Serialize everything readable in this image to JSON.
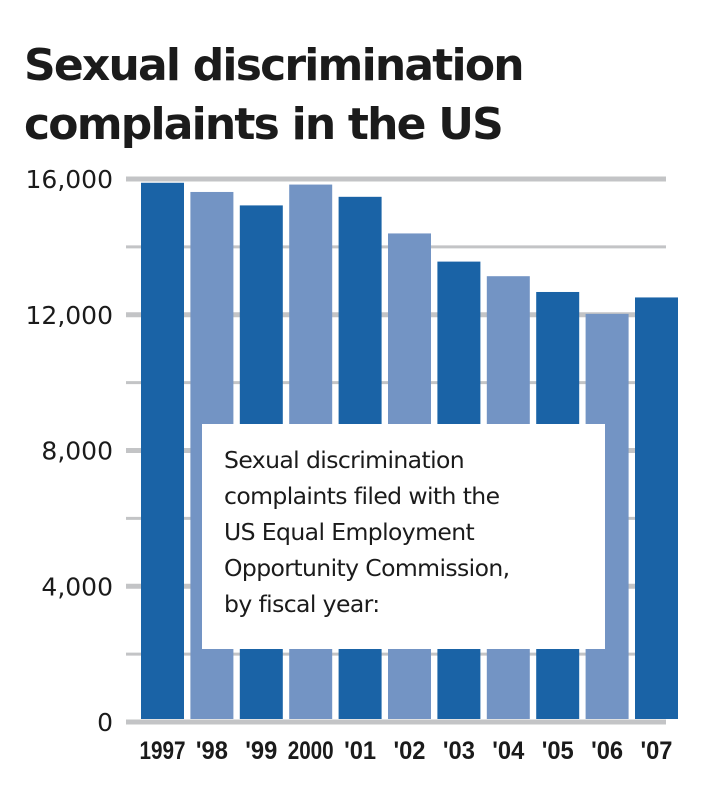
{
  "chart_data": {
    "type": "bar",
    "title": "Sexual discrimination complaints in the US",
    "title_lines": [
      "Sexual discrimination",
      "complaints in the US"
    ],
    "categories": [
      "1997",
      "'98",
      "'99",
      "2000",
      "'01",
      "'02",
      "'03",
      "'04",
      "'05",
      "'06",
      "'07"
    ],
    "values": [
      15889,
      15618,
      15222,
      15836,
      15475,
      14396,
      13566,
      13136,
      12671,
      12025,
      12510
    ],
    "xlabel": "",
    "ylabel": "",
    "ylim": [
      0,
      16000
    ],
    "yticks": [
      0,
      4000,
      8000,
      12000,
      16000
    ],
    "ytick_labels": [
      "0",
      "4,000",
      "8,000",
      "12,000",
      "16,000"
    ],
    "minor_ticks": [
      2000,
      6000,
      10000,
      14000
    ],
    "grid": true,
    "legend": "none",
    "annotation": {
      "lines": [
        "Sexual discrimination",
        "complaints filed with the",
        "US Equal Employment",
        "Opportunity Commission,",
        "by fiscal year:"
      ],
      "placement": "center-bottom"
    },
    "colors": {
      "bar_dark": "#1a63a6",
      "bar_light": "#7394c4",
      "grid": "#c3c4c6",
      "text": "#1b1b1b"
    }
  }
}
